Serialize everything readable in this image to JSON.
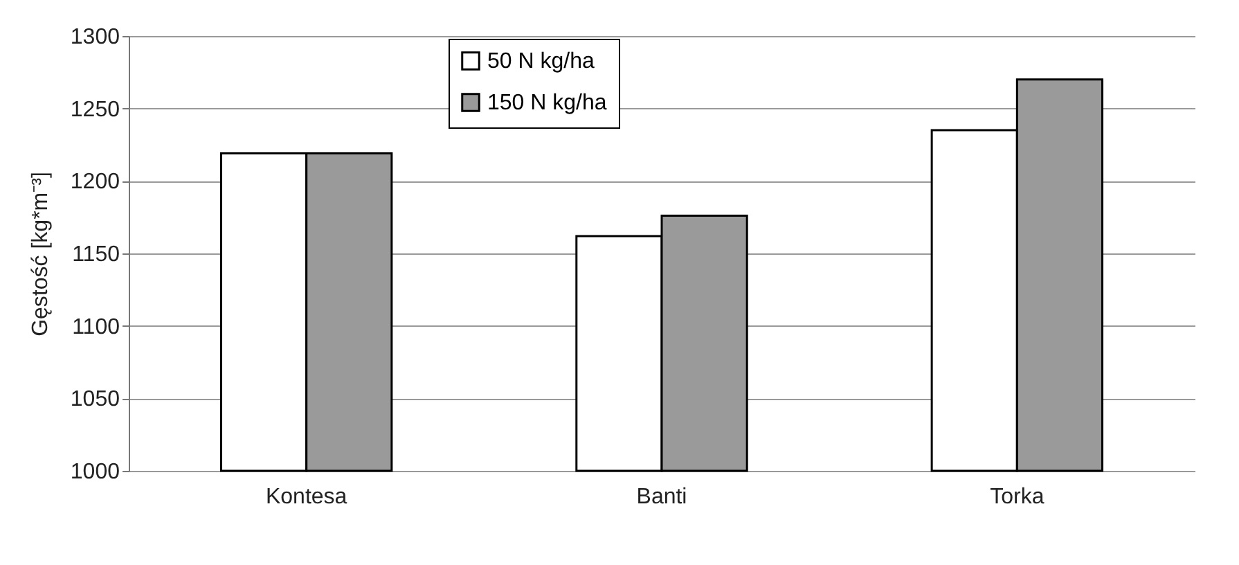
{
  "chart_data": {
    "type": "bar",
    "ylabel": "Gęstość [kg*m⁻³]",
    "categories": [
      "Kontesa",
      "Banti",
      "Torka"
    ],
    "series": [
      {
        "name": "50 N kg/ha",
        "color": "#ffffff",
        "values": [
          1219,
          1162,
          1235
        ]
      },
      {
        "name": "150 N kg/ha",
        "color": "#9a9a9a",
        "values": [
          1219,
          1176,
          1270
        ]
      }
    ],
    "ylim": [
      1000,
      1300
    ],
    "yticks": [
      1000,
      1050,
      1100,
      1150,
      1200,
      1250,
      1300
    ],
    "grid": "y",
    "legend": "top"
  }
}
